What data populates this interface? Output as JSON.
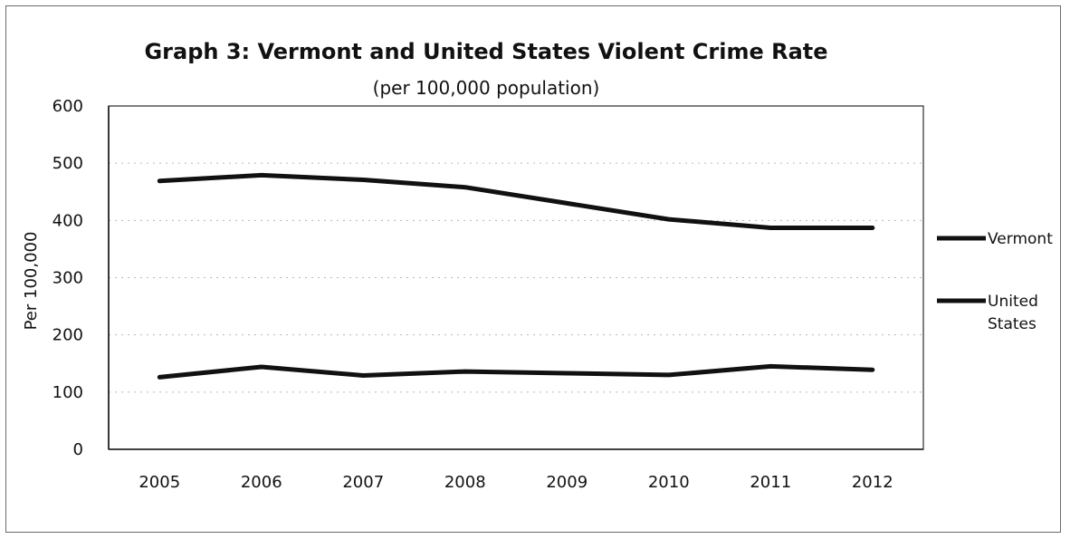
{
  "chart_data": {
    "type": "line",
    "title": "Graph 3: Vermont and United States Violent Crime Rate",
    "subtitle": "(per 100,000 population)",
    "xlabel": "",
    "ylabel": "Per 100,000",
    "categories": [
      "2005",
      "2006",
      "2007",
      "2008",
      "2009",
      "2010",
      "2011",
      "2012"
    ],
    "ylim": [
      0,
      600
    ],
    "yticks": [
      0,
      100,
      200,
      300,
      400,
      500,
      600
    ],
    "grid": true,
    "legend_position": "right",
    "series": [
      {
        "name": "Vermont",
        "values": [
          469,
          479,
          471,
          458,
          430,
          402,
          387,
          387
        ],
        "color": "#111111"
      },
      {
        "name": "United States",
        "legend_lines": [
          "United",
          "States"
        ],
        "values": [
          126,
          144,
          129,
          136,
          133,
          130,
          145,
          139
        ],
        "color": "#111111"
      }
    ]
  }
}
